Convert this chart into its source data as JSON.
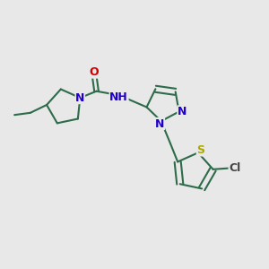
{
  "bg_color": "#e8e8e8",
  "bond_color": "#2d6b4a",
  "bond_width": 1.5,
  "atom_colors": {
    "N": "#2200cc",
    "O": "#cc0000",
    "S": "#aaaa00",
    "Cl": "#444444",
    "C": "#2d6b4a"
  },
  "font_size": 9,
  "figsize": [
    3.0,
    3.0
  ],
  "dpi": 100
}
